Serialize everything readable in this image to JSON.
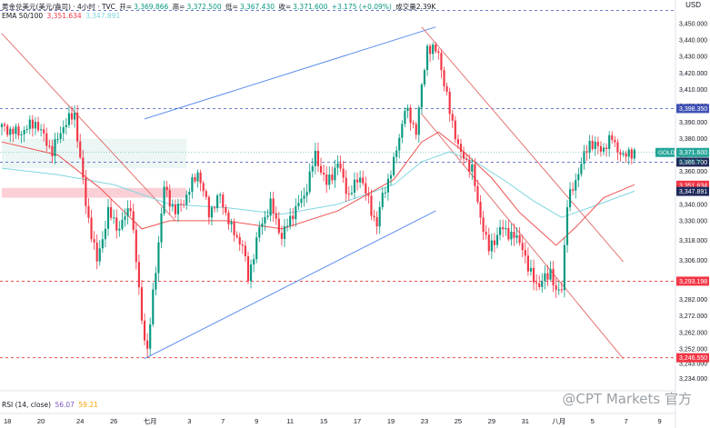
{
  "legend": {
    "symbol": "黄金兑美元(美元/盎司) · 4小时 · TVC",
    "open_label": "开=",
    "open": "3,369.866",
    "high_label": "高=",
    "high": "3,372.500",
    "low_label": "低=",
    "low": "3,367.430",
    "close_label": "收=",
    "close": "3,371.600",
    "change": "+3.175 (+0.09%)",
    "volume": "成交量2.39K",
    "ema_label": "EMA 50/100",
    "ema_a": "3,351.634",
    "ema_b": "3,347.891"
  },
  "rsi": {
    "label": "RSI (14, close)",
    "v1": "56.07",
    "v2": "59.21"
  },
  "currency": "USD",
  "watermark": "@CPT Markets 官方",
  "chart_data": {
    "type": "candlestick",
    "ylim": [
      3232,
      3460
    ],
    "y_ticks": [
      3234,
      3243,
      3252,
      3262,
      3272,
      3282,
      3293,
      3306,
      3318,
      3330,
      3340,
      3350,
      3360,
      3370,
      3380,
      3390,
      3400,
      3410,
      3420,
      3430,
      3440,
      3450
    ],
    "y_tick_labels": [
      "3,234.000",
      "3,243.000",
      "3,252.000",
      "3,262.000",
      "3,272.000",
      "3,282.000",
      "3,293.000",
      "3,306.000",
      "3,318.000",
      "3,330.000",
      "3,340.000",
      "3,350.000",
      "3,360.000",
      "3,370.000",
      "3,380.000",
      "3,390.000",
      "3,400.000",
      "3,410.000",
      "3,420.000",
      "3,430.000",
      "3,440.000",
      "3,450.000"
    ],
    "x_labels": [
      {
        "label": "18",
        "i": 2
      },
      {
        "label": "20",
        "i": 14
      },
      {
        "label": "24",
        "i": 28
      },
      {
        "label": "26",
        "i": 40
      },
      {
        "label": "七月",
        "i": 53
      },
      {
        "label": "3",
        "i": 67
      },
      {
        "label": "7",
        "i": 79
      },
      {
        "label": "9",
        "i": 91
      },
      {
        "label": "11",
        "i": 103
      },
      {
        "label": "15",
        "i": 115
      },
      {
        "label": "17",
        "i": 127
      },
      {
        "label": "19",
        "i": 139
      },
      {
        "label": "23",
        "i": 151
      },
      {
        "label": "25",
        "i": 163
      },
      {
        "label": "29",
        "i": 175
      },
      {
        "label": "31",
        "i": 187
      },
      {
        "label": "八月",
        "i": 199
      },
      {
        "label": "5",
        "i": 211
      },
      {
        "label": "7",
        "i": 223
      },
      {
        "label": "9",
        "i": 235
      }
    ],
    "close_path": [
      [
        0,
        3387
      ],
      [
        6,
        3383
      ],
      [
        12,
        3390
      ],
      [
        18,
        3372
      ],
      [
        22,
        3388
      ],
      [
        26,
        3395
      ],
      [
        30,
        3340
      ],
      [
        34,
        3305
      ],
      [
        38,
        3335
      ],
      [
        42,
        3325
      ],
      [
        46,
        3340
      ],
      [
        50,
        3270
      ],
      [
        52,
        3250
      ],
      [
        54,
        3285
      ],
      [
        58,
        3350
      ],
      [
        62,
        3335
      ],
      [
        66,
        3345
      ],
      [
        70,
        3360
      ],
      [
        74,
        3335
      ],
      [
        78,
        3345
      ],
      [
        82,
        3325
      ],
      [
        86,
        3315
      ],
      [
        88,
        3295
      ],
      [
        92,
        3325
      ],
      [
        96,
        3340
      ],
      [
        100,
        3320
      ],
      [
        104,
        3335
      ],
      [
        108,
        3345
      ],
      [
        112,
        3370
      ],
      [
        116,
        3352
      ],
      [
        120,
        3365
      ],
      [
        124,
        3345
      ],
      [
        128,
        3358
      ],
      [
        132,
        3336
      ],
      [
        134,
        3328
      ],
      [
        136,
        3345
      ],
      [
        140,
        3365
      ],
      [
        144,
        3398
      ],
      [
        148,
        3385
      ],
      [
        152,
        3436
      ],
      [
        156,
        3432
      ],
      [
        160,
        3396
      ],
      [
        164,
        3370
      ],
      [
        168,
        3362
      ],
      [
        170,
        3340
      ],
      [
        174,
        3312
      ],
      [
        178,
        3325
      ],
      [
        182,
        3322
      ],
      [
        186,
        3315
      ],
      [
        188,
        3300
      ],
      [
        192,
        3290
      ],
      [
        196,
        3300
      ],
      [
        198,
        3285
      ],
      [
        200,
        3290
      ],
      [
        202,
        3340
      ],
      [
        206,
        3360
      ],
      [
        210,
        3378
      ],
      [
        214,
        3373
      ],
      [
        218,
        3380
      ],
      [
        222,
        3368
      ],
      [
        224,
        3372
      ],
      [
        226,
        3371.6
      ]
    ],
    "last_price": 3371.6,
    "countdown": "03:56:54",
    "symbol_tag": "GOLD",
    "ema_slow": [
      [
        0,
        3362
      ],
      [
        20,
        3358
      ],
      [
        40,
        3352
      ],
      [
        60,
        3340
      ],
      [
        80,
        3338
      ],
      [
        100,
        3334
      ],
      [
        120,
        3340
      ],
      [
        140,
        3352
      ],
      [
        150,
        3366
      ],
      [
        160,
        3372
      ],
      [
        170,
        3365
      ],
      [
        180,
        3354
      ],
      [
        190,
        3342
      ],
      [
        200,
        3332
      ],
      [
        210,
        3338
      ],
      [
        226,
        3348
      ]
    ],
    "ema_fast": [
      [
        0,
        3378
      ],
      [
        20,
        3370
      ],
      [
        35,
        3350
      ],
      [
        50,
        3325
      ],
      [
        60,
        3330
      ],
      [
        80,
        3330
      ],
      [
        100,
        3325
      ],
      [
        120,
        3336
      ],
      [
        140,
        3355
      ],
      [
        150,
        3378
      ],
      [
        156,
        3384
      ],
      [
        165,
        3372
      ],
      [
        175,
        3356
      ],
      [
        185,
        3335
      ],
      [
        198,
        3315
      ],
      [
        205,
        3326
      ],
      [
        215,
        3344
      ],
      [
        226,
        3352
      ]
    ],
    "levels": [
      {
        "price": 3398.35,
        "label": "3,398.350",
        "style": "blue-dashed",
        "tag": "blue"
      },
      {
        "price": 3365.7,
        "label": "3,365.700",
        "style": "blue-dashed",
        "tag": "navy"
      },
      {
        "price": 3293.198,
        "label": "3,293.198",
        "style": "red-dashed",
        "tag": "red"
      },
      {
        "price": 3246.55,
        "label": "3,246.550",
        "style": "red-dashed",
        "tag": "red"
      },
      {
        "price": 3458.0,
        "label": "",
        "style": "blue-dashed",
        "tag": ""
      },
      {
        "price": 3351.634,
        "label": "3,351.634",
        "style": "none",
        "tag": "red"
      },
      {
        "price": 3347.891,
        "label": "3,347.891",
        "style": "none",
        "tag": "navy"
      }
    ],
    "channel_up": [
      [
        [
          51,
          3246
        ],
        [
          155,
          3336
        ]
      ],
      [
        [
          51,
          3392
        ],
        [
          155,
          3448
        ]
      ]
    ],
    "channel_down": [
      [
        [
          150,
          3448
        ],
        [
          222,
          3305
        ]
      ],
      [
        [
          150,
          3395
        ],
        [
          222,
          3246
        ]
      ]
    ],
    "downtrend_line": [
      [
        0,
        3444
      ],
      [
        62,
        3330
      ]
    ],
    "zone": {
      "from": 0,
      "to": 66,
      "low": 3344,
      "high": 3350
    },
    "pink_zone_left": {
      "from": 0,
      "to": 5,
      "low": 3343,
      "high": 3350
    }
  }
}
